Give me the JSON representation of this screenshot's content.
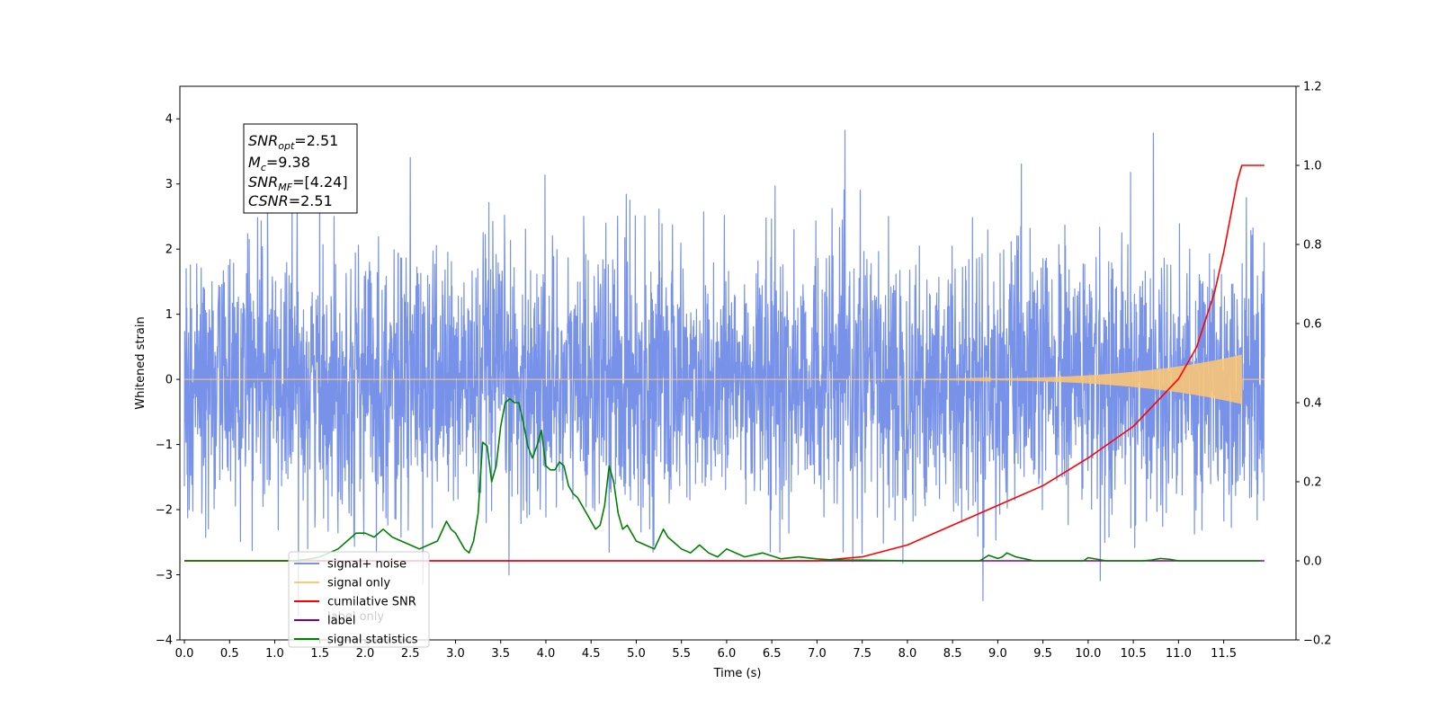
{
  "chart_data": {
    "type": "line",
    "xlabel": "Time (s)",
    "ylabel": "Whitened strain",
    "xlim": [
      -0.05,
      12.3
    ],
    "ylim_left": [
      -4,
      4.5
    ],
    "ylim_right": [
      -0.2,
      1.2
    ],
    "x_ticks": [
      "0.0",
      "0.5",
      "1.0",
      "1.5",
      "2.0",
      "2.5",
      "3.0",
      "3.5",
      "4.0",
      "4.5",
      "5.0",
      "5.5",
      "6.0",
      "6.5",
      "7.0",
      "7.5",
      "8.0",
      "8.5",
      "9.0",
      "9.5",
      "10.0",
      "10.5",
      "11.0",
      "11.5"
    ],
    "y_ticks_left": [
      "−4",
      "−3",
      "−2",
      "−1",
      "0",
      "1",
      "2",
      "3",
      "4"
    ],
    "y_ticks_right": [
      "−0.2",
      "0.0",
      "0.2",
      "0.4",
      "0.6",
      "0.8",
      "1.0",
      "1.2"
    ],
    "annotation": {
      "lines": [
        {
          "base": "SNR",
          "sub": "opt",
          "value": "=2.51"
        },
        {
          "base": "M",
          "sub": "c",
          "value": "=9.38"
        },
        {
          "base": "SNR",
          "sub": "MF",
          "value": "=[4.24]"
        },
        {
          "base": "CSNR",
          "sub": "",
          "value": "=2.51"
        }
      ]
    },
    "legend": {
      "placement": "lower-left",
      "entries": [
        {
          "label": "signal+ noise",
          "color": "#7792e8"
        },
        {
          "label": "signal only",
          "color": "#ffc870"
        },
        {
          "label": "cumilative SNR",
          "color": "#ff0000"
        },
        {
          "label": "label",
          "color": "#800080"
        },
        {
          "label": "signal statistics",
          "color": "#008000"
        }
      ],
      "hidden_label": "label only"
    },
    "series": [
      {
        "name": "signal+ noise",
        "axis": "left",
        "color": "#7792e8",
        "x_range": [
          0,
          11.95
        ],
        "sigma": 1.0,
        "peak_max": 4.12,
        "peak_min": -3.63
      },
      {
        "name": "signal only",
        "axis": "left",
        "color": "#ffc870",
        "x_range": [
          0,
          11.95
        ],
        "chirp_start": 7.0,
        "merger_time": 11.7,
        "peak_amplitude": 0.38
      },
      {
        "name": "cumilative SNR",
        "axis": "right",
        "x": [
          0,
          6.8,
          7.0,
          7.5,
          8.0,
          8.5,
          9.0,
          9.5,
          10.0,
          10.5,
          11.0,
          11.2,
          11.4,
          11.5,
          11.6,
          11.65,
          11.7,
          11.95
        ],
        "y": [
          0,
          0,
          0.0,
          0.01,
          0.04,
          0.09,
          0.14,
          0.19,
          0.26,
          0.34,
          0.46,
          0.54,
          0.68,
          0.78,
          0.9,
          0.96,
          1.0,
          1.0
        ],
        "color": "#ff0000"
      },
      {
        "name": "label",
        "axis": "right",
        "x": [
          0,
          11.95
        ],
        "y": [
          0,
          0
        ],
        "color": "#800080"
      },
      {
        "name": "signal statistics",
        "axis": "right",
        "x": [
          0,
          0.2,
          0.4,
          0.6,
          0.8,
          1.0,
          1.2,
          1.4,
          1.5,
          1.6,
          1.7,
          1.8,
          1.9,
          2.0,
          2.1,
          2.2,
          2.3,
          2.4,
          2.5,
          2.6,
          2.7,
          2.8,
          2.9,
          2.95,
          3.0,
          3.1,
          3.15,
          3.2,
          3.25,
          3.3,
          3.35,
          3.4,
          3.45,
          3.5,
          3.55,
          3.6,
          3.65,
          3.7,
          3.75,
          3.8,
          3.85,
          3.9,
          3.95,
          4.0,
          4.05,
          4.1,
          4.15,
          4.2,
          4.25,
          4.3,
          4.35,
          4.4,
          4.45,
          4.5,
          4.55,
          4.6,
          4.65,
          4.7,
          4.75,
          4.8,
          4.85,
          4.9,
          4.95,
          5.0,
          5.1,
          5.2,
          5.3,
          5.35,
          5.4,
          5.5,
          5.6,
          5.7,
          5.8,
          5.9,
          6.0,
          6.2,
          6.4,
          6.6,
          6.8,
          7.0,
          7.2,
          7.5,
          8.0,
          8.5,
          8.8,
          8.9,
          9.0,
          9.05,
          9.1,
          9.2,
          9.3,
          9.4,
          9.6,
          9.8,
          9.95,
          10.0,
          10.05,
          10.1,
          10.2,
          10.4,
          10.6,
          10.7,
          10.8,
          10.9,
          11.0,
          11.2,
          11.6,
          11.9
        ],
        "y": [
          0,
          0,
          0,
          0,
          0,
          0,
          0,
          0.005,
          0.01,
          0.02,
          0.03,
          0.05,
          0.07,
          0.07,
          0.06,
          0.08,
          0.06,
          0.05,
          0.04,
          0.03,
          0.04,
          0.05,
          0.1,
          0.08,
          0.07,
          0.03,
          0.02,
          0.05,
          0.12,
          0.3,
          0.29,
          0.2,
          0.24,
          0.34,
          0.4,
          0.41,
          0.4,
          0.4,
          0.35,
          0.29,
          0.26,
          0.29,
          0.33,
          0.24,
          0.23,
          0.23,
          0.25,
          0.24,
          0.19,
          0.17,
          0.16,
          0.14,
          0.12,
          0.1,
          0.08,
          0.09,
          0.14,
          0.24,
          0.2,
          0.12,
          0.08,
          0.09,
          0.07,
          0.05,
          0.04,
          0.03,
          0.08,
          0.06,
          0.05,
          0.03,
          0.02,
          0.04,
          0.02,
          0.01,
          0.03,
          0.01,
          0.02,
          0.005,
          0.01,
          0.005,
          0.002,
          0.002,
          0.0,
          0.0,
          0.0,
          0.014,
          0.006,
          0.01,
          0.02,
          0.01,
          0.005,
          0.0,
          0.0,
          0.0,
          0.0,
          0.008,
          0.006,
          0.004,
          0.0,
          0.0,
          0.0,
          0.002,
          0.006,
          0.004,
          0.0,
          0.0,
          0.0,
          0.0
        ],
        "color": "#008000"
      }
    ]
  }
}
